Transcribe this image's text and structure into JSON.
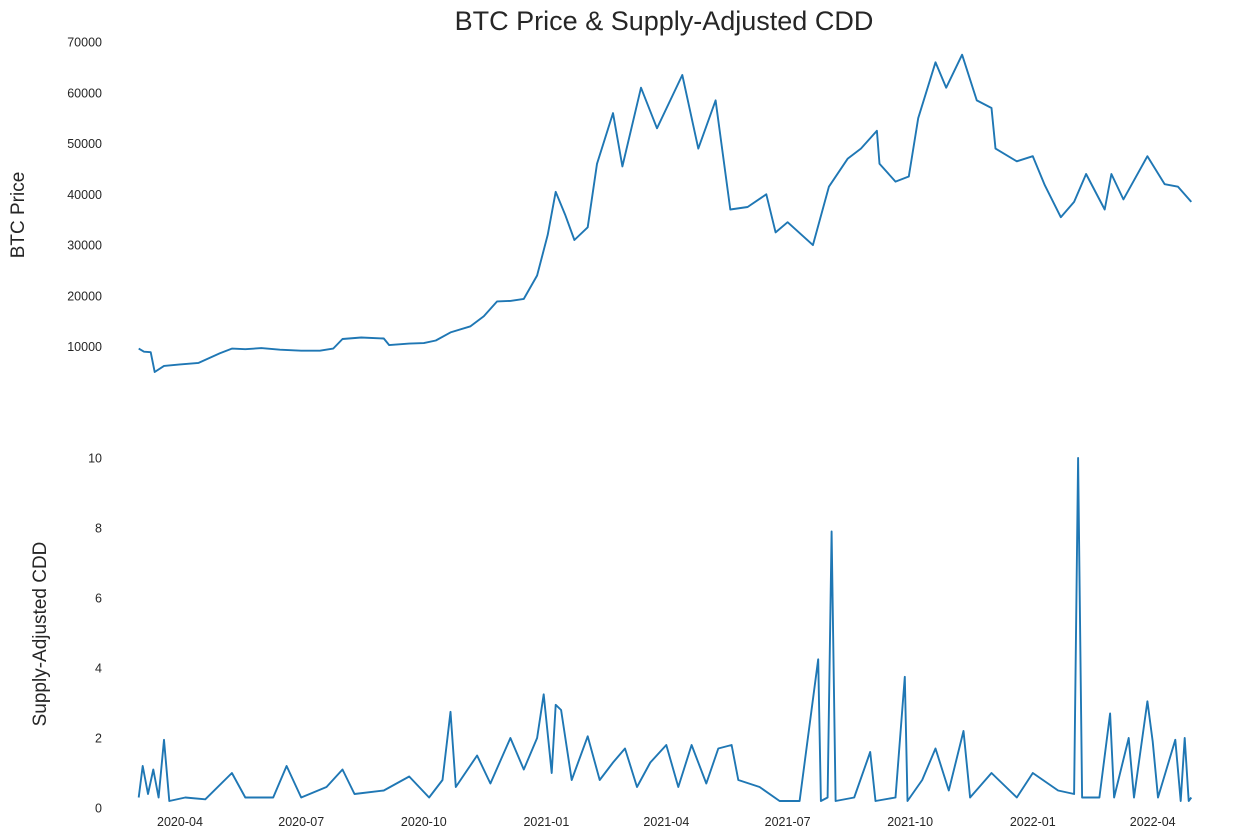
{
  "chart_data": {
    "title": "BTC Price & Supply-Adjusted CDD",
    "type": "line",
    "x_start": "2020-03-01",
    "x_end": "2022-04-30",
    "xlim": [
      "2020-02-22",
      "2022-05-05"
    ],
    "x_tick_labels": [
      "2020-04",
      "2020-07",
      "2020-10",
      "2021-01",
      "2021-04",
      "2021-07",
      "2021-10",
      "2022-01",
      "2022-04"
    ],
    "x_tick_dates": [
      "2020-04-01",
      "2020-07-01",
      "2020-10-01",
      "2021-01-01",
      "2021-04-01",
      "2021-07-01",
      "2021-10-01",
      "2022-01-01",
      "2022-04-01"
    ],
    "grid": false,
    "color": "#1f77b4",
    "panels": [
      {
        "ylabel": "BTC  Price",
        "ylim": [
          5000,
          70000
        ],
        "yticks": [
          10000,
          20000,
          30000,
          40000,
          50000,
          60000,
          70000
        ],
        "series": [
          {
            "name": "",
            "points": [
              [
                "2020-03-01",
                9600
              ],
              [
                "2020-03-05",
                9000
              ],
              [
                "2020-03-10",
                8900
              ],
              [
                "2020-03-13",
                5000
              ],
              [
                "2020-03-20",
                6200
              ],
              [
                "2020-04-01",
                6500
              ],
              [
                "2020-04-15",
                6800
              ],
              [
                "2020-05-01",
                8700
              ],
              [
                "2020-05-10",
                9600
              ],
              [
                "2020-05-20",
                9500
              ],
              [
                "2020-06-01",
                9700
              ],
              [
                "2020-06-15",
                9400
              ],
              [
                "2020-07-01",
                9200
              ],
              [
                "2020-07-15",
                9200
              ],
              [
                "2020-07-25",
                9600
              ],
              [
                "2020-08-01",
                11500
              ],
              [
                "2020-08-15",
                11800
              ],
              [
                "2020-09-01",
                11600
              ],
              [
                "2020-09-05",
                10300
              ],
              [
                "2020-09-20",
                10600
              ],
              [
                "2020-10-01",
                10700
              ],
              [
                "2020-10-10",
                11200
              ],
              [
                "2020-10-21",
                12800
              ],
              [
                "2020-11-05",
                14000
              ],
              [
                "2020-11-15",
                16000
              ],
              [
                "2020-11-25",
                18900
              ],
              [
                "2020-12-05",
                19000
              ],
              [
                "2020-12-15",
                19400
              ],
              [
                "2020-12-25",
                24000
              ],
              [
                "2021-01-02",
                32000
              ],
              [
                "2021-01-08",
                40500
              ],
              [
                "2021-01-15",
                36000
              ],
              [
                "2021-01-22",
                31000
              ],
              [
                "2021-02-01",
                33500
              ],
              [
                "2021-02-08",
                46000
              ],
              [
                "2021-02-20",
                56000
              ],
              [
                "2021-02-27",
                45500
              ],
              [
                "2021-03-13",
                61000
              ],
              [
                "2021-03-25",
                53000
              ],
              [
                "2021-04-13",
                63500
              ],
              [
                "2021-04-25",
                49000
              ],
              [
                "2021-05-08",
                58500
              ],
              [
                "2021-05-19",
                37000
              ],
              [
                "2021-06-01",
                37500
              ],
              [
                "2021-06-15",
                40000
              ],
              [
                "2021-06-22",
                32500
              ],
              [
                "2021-07-01",
                34500
              ],
              [
                "2021-07-20",
                30000
              ],
              [
                "2021-08-01",
                41500
              ],
              [
                "2021-08-15",
                47000
              ],
              [
                "2021-08-25",
                49000
              ],
              [
                "2021-09-06",
                52500
              ],
              [
                "2021-09-08",
                46000
              ],
              [
                "2021-09-20",
                42500
              ],
              [
                "2021-09-30",
                43500
              ],
              [
                "2021-10-07",
                55000
              ],
              [
                "2021-10-20",
                66000
              ],
              [
                "2021-10-28",
                61000
              ],
              [
                "2021-11-09",
                67500
              ],
              [
                "2021-11-20",
                58500
              ],
              [
                "2021-12-01",
                57000
              ],
              [
                "2021-12-04",
                49000
              ],
              [
                "2021-12-20",
                46500
              ],
              [
                "2022-01-01",
                47500
              ],
              [
                "2022-01-10",
                41800
              ],
              [
                "2022-01-22",
                35500
              ],
              [
                "2022-02-01",
                38500
              ],
              [
                "2022-02-10",
                44000
              ],
              [
                "2022-02-24",
                37000
              ],
              [
                "2022-03-01",
                44000
              ],
              [
                "2022-03-10",
                39000
              ],
              [
                "2022-03-28",
                47500
              ],
              [
                "2022-04-10",
                42000
              ],
              [
                "2022-04-20",
                41500
              ],
              [
                "2022-04-30",
                38500
              ]
            ]
          }
        ]
      },
      {
        "ylabel": "Supply-Adjusted CDD",
        "ylim": [
          0,
          10
        ],
        "yticks": [
          0,
          2,
          4,
          6,
          8,
          10
        ],
        "series": [
          {
            "name": "",
            "points": [
              [
                "2020-03-01",
                0.3
              ],
              [
                "2020-03-04",
                1.2
              ],
              [
                "2020-03-08",
                0.4
              ],
              [
                "2020-03-12",
                1.1
              ],
              [
                "2020-03-16",
                0.3
              ],
              [
                "2020-03-20",
                1.95
              ],
              [
                "2020-03-24",
                0.2
              ],
              [
                "2020-04-05",
                0.3
              ],
              [
                "2020-04-20",
                0.25
              ],
              [
                "2020-05-10",
                1.0
              ],
              [
                "2020-05-20",
                0.3
              ],
              [
                "2020-06-10",
                0.3
              ],
              [
                "2020-06-20",
                1.2
              ],
              [
                "2020-07-01",
                0.3
              ],
              [
                "2020-07-20",
                0.6
              ],
              [
                "2020-08-01",
                1.1
              ],
              [
                "2020-08-10",
                0.4
              ],
              [
                "2020-09-01",
                0.5
              ],
              [
                "2020-09-20",
                0.9
              ],
              [
                "2020-10-05",
                0.3
              ],
              [
                "2020-10-15",
                0.8
              ],
              [
                "2020-10-21",
                2.75
              ],
              [
                "2020-10-25",
                0.6
              ],
              [
                "2020-11-10",
                1.5
              ],
              [
                "2020-11-20",
                0.7
              ],
              [
                "2020-12-05",
                2.0
              ],
              [
                "2020-12-15",
                1.1
              ],
              [
                "2020-12-25",
                2.0
              ],
              [
                "2020-12-30",
                3.25
              ],
              [
                "2021-01-05",
                1.0
              ],
              [
                "2021-01-08",
                2.95
              ],
              [
                "2021-01-12",
                2.8
              ],
              [
                "2021-01-20",
                0.8
              ],
              [
                "2021-02-01",
                2.05
              ],
              [
                "2021-02-10",
                0.8
              ],
              [
                "2021-02-20",
                1.3
              ],
              [
                "2021-03-01",
                1.7
              ],
              [
                "2021-03-10",
                0.6
              ],
              [
                "2021-03-20",
                1.3
              ],
              [
                "2021-04-01",
                1.8
              ],
              [
                "2021-04-10",
                0.6
              ],
              [
                "2021-04-20",
                1.8
              ],
              [
                "2021-05-01",
                0.7
              ],
              [
                "2021-05-10",
                1.7
              ],
              [
                "2021-05-20",
                1.8
              ],
              [
                "2021-05-25",
                0.8
              ],
              [
                "2021-06-10",
                0.6
              ],
              [
                "2021-06-25",
                0.2
              ],
              [
                "2021-07-10",
                0.2
              ],
              [
                "2021-07-24",
                4.25
              ],
              [
                "2021-07-26",
                0.2
              ],
              [
                "2021-07-31",
                0.3
              ],
              [
                "2021-08-03",
                7.9
              ],
              [
                "2021-08-06",
                0.2
              ],
              [
                "2021-08-20",
                0.3
              ],
              [
                "2021-09-01",
                1.6
              ],
              [
                "2021-09-05",
                0.2
              ],
              [
                "2021-09-20",
                0.3
              ],
              [
                "2021-09-27",
                3.75
              ],
              [
                "2021-09-29",
                0.2
              ],
              [
                "2021-10-10",
                0.8
              ],
              [
                "2021-10-20",
                1.7
              ],
              [
                "2021-10-30",
                0.5
              ],
              [
                "2021-11-10",
                2.2
              ],
              [
                "2021-11-15",
                0.3
              ],
              [
                "2021-12-01",
                1.0
              ],
              [
                "2021-12-20",
                0.3
              ],
              [
                "2022-01-01",
                1.0
              ],
              [
                "2022-01-20",
                0.5
              ],
              [
                "2022-02-01",
                0.4
              ],
              [
                "2022-02-04",
                10.0
              ],
              [
                "2022-02-07",
                0.3
              ],
              [
                "2022-02-20",
                0.3
              ],
              [
                "2022-02-28",
                2.7
              ],
              [
                "2022-03-03",
                0.3
              ],
              [
                "2022-03-14",
                2.0
              ],
              [
                "2022-03-18",
                0.3
              ],
              [
                "2022-03-28",
                3.05
              ],
              [
                "2022-04-01",
                1.9
              ],
              [
                "2022-04-05",
                0.3
              ],
              [
                "2022-04-18",
                1.95
              ],
              [
                "2022-04-22",
                0.2
              ],
              [
                "2022-04-25",
                2.0
              ],
              [
                "2022-04-28",
                0.2
              ],
              [
                "2022-04-30",
                0.3
              ]
            ]
          }
        ]
      }
    ]
  }
}
